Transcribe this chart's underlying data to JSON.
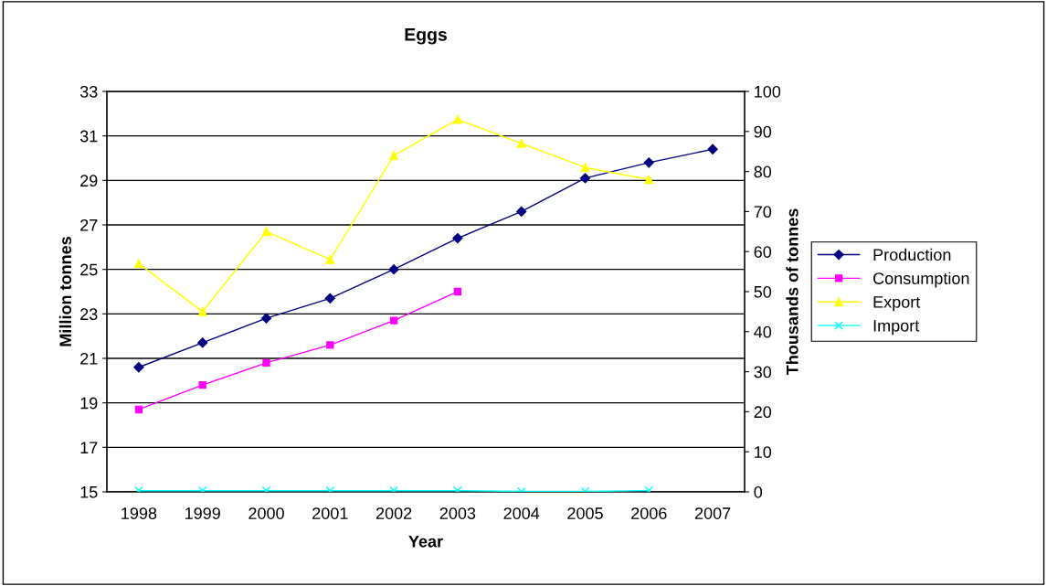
{
  "chart_data": {
    "type": "line",
    "title": "Eggs",
    "xlabel": "Year",
    "ylabel": "Million tonnes",
    "y2label": "Thousands of tonnes",
    "categories": [
      "1998",
      "1999",
      "2000",
      "2001",
      "2002",
      "2003",
      "2004",
      "2005",
      "2006",
      "2007"
    ],
    "series": [
      {
        "name": "Production",
        "color": "#000080",
        "marker": "diamond",
        "values": [
          20.6,
          21.7,
          22.8,
          23.7,
          25.0,
          26.4,
          27.6,
          29.1,
          29.8,
          30.4
        ]
      },
      {
        "name": "Consumption",
        "color": "#ff00ff",
        "marker": "square",
        "values": [
          18.7,
          19.8,
          20.8,
          21.6,
          22.7,
          24.0,
          null,
          null,
          null,
          null
        ]
      },
      {
        "name": "Export",
        "color": "#ffff00",
        "marker": "triangle",
        "axis": "y2",
        "values": [
          57,
          45,
          65,
          58,
          84,
          93,
          87,
          81,
          78,
          null
        ]
      },
      {
        "name": "Import",
        "color": "#00ffff",
        "marker": "cross",
        "axis": "y2",
        "values": [
          0.3,
          0.3,
          0.3,
          0.3,
          0.3,
          0.3,
          0.1,
          0.1,
          0.3,
          null
        ]
      }
    ],
    "ylim": [
      15,
      33
    ],
    "yticks": [
      15,
      17,
      19,
      21,
      23,
      25,
      27,
      29,
      31,
      33
    ],
    "y2lim": [
      0,
      100
    ],
    "y2ticks": [
      0,
      10,
      20,
      30,
      40,
      50,
      60,
      70,
      80,
      90,
      100
    ],
    "grid": "y",
    "legend": "right"
  }
}
